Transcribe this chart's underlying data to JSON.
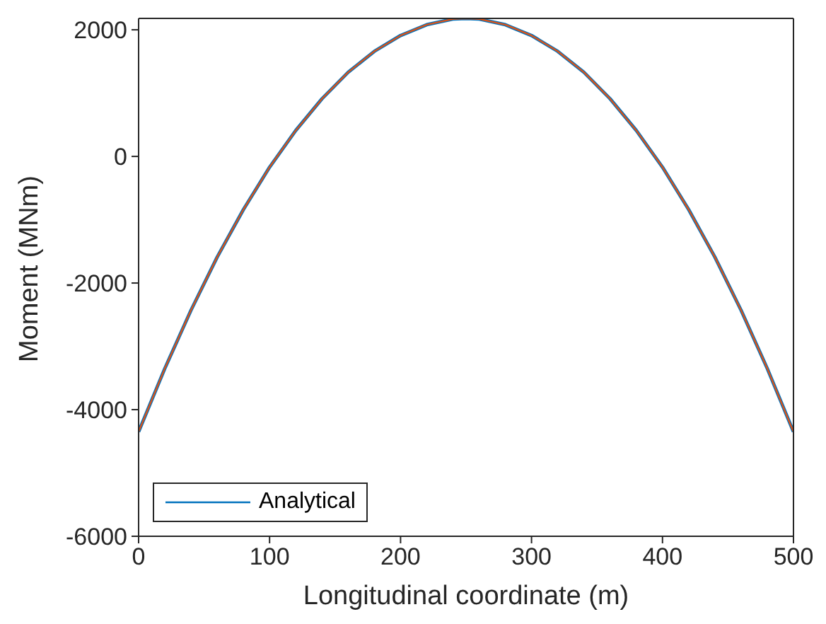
{
  "chart_data": {
    "type": "line",
    "xlabel": "Longitudinal coordinate (m)",
    "ylabel": "Moment (MNm)",
    "x": [
      0,
      20,
      40,
      60,
      80,
      100,
      120,
      140,
      160,
      180,
      200,
      220,
      240,
      250,
      260,
      280,
      300,
      320,
      340,
      360,
      380,
      400,
      420,
      440,
      460,
      480,
      500
    ],
    "series": [
      {
        "name": "Analytical",
        "color": "#0072bd",
        "values": [
          -4350,
          -3350,
          -2430,
          -1590,
          -840,
          -170,
          410,
          910,
          1330,
          1660,
          1910,
          2080,
          2170,
          2180,
          2170,
          2080,
          1910,
          1660,
          1330,
          910,
          410,
          -170,
          -840,
          -1590,
          -2430,
          -3350,
          -4350
        ]
      },
      {
        "color": "#d95319",
        "values": [
          -4350,
          -3350,
          -2430,
          -1590,
          -840,
          -170,
          410,
          910,
          1330,
          1660,
          1910,
          2080,
          2170,
          2180,
          2170,
          2080,
          1910,
          1660,
          1330,
          910,
          410,
          -170,
          -840,
          -1590,
          -2430,
          -3350,
          -4350
        ]
      }
    ],
    "xlim": [
      0,
      500
    ],
    "xticks": [
      0,
      100,
      200,
      300,
      400,
      500
    ],
    "ylim": [
      -6000,
      2180
    ],
    "yticks": [
      -6000,
      -4000,
      -2000,
      0,
      2000
    ],
    "grid": false,
    "legend": "bottom left",
    "marker": "none",
    "line_style": "solid"
  }
}
